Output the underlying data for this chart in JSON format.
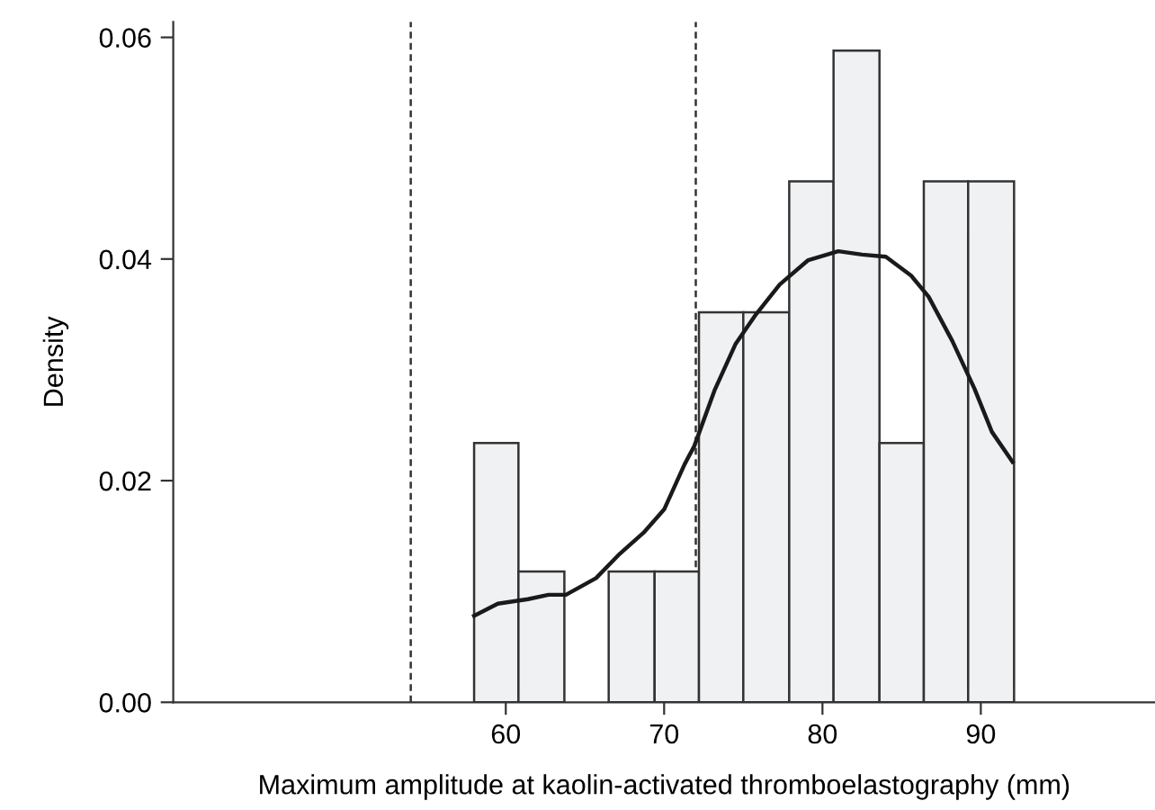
{
  "chart_data": {
    "type": "histogram",
    "xlabel": "Maximum amplitude at kaolin-activated thromboelastography (mm)",
    "ylabel": "Density",
    "bins": [
      58.0,
      60.8,
      63.7,
      66.5,
      69.4,
      72.2,
      75.0,
      77.9,
      80.7,
      83.6,
      86.4,
      89.2,
      92.1
    ],
    "values": [
      0.0234,
      0.0118,
      0,
      0.0118,
      0.0118,
      0.0352,
      0.0352,
      0.047,
      0.0588,
      0.0234,
      0.047,
      0.047
    ],
    "color": "#f0f1f3",
    "series": [
      {
        "type": "line",
        "color": "#1a1a1a",
        "x": [
          58.0,
          59.5,
          61.4,
          62.7,
          63.8,
          65.7,
          67.2,
          68.7,
          70.0,
          71.3,
          71.9,
          73.2,
          74.5,
          75.8,
          77.3,
          79.1,
          81.0,
          82.5,
          84.0,
          85.6,
          86.7,
          88.2,
          89.6,
          90.7,
          92.0
        ],
        "values": [
          0.0078,
          0.0089,
          0.0093,
          0.0097,
          0.0097,
          0.0112,
          0.0134,
          0.0153,
          0.0174,
          0.0215,
          0.0231,
          0.0282,
          0.0323,
          0.035,
          0.0377,
          0.0399,
          0.0407,
          0.0404,
          0.0402,
          0.0385,
          0.0366,
          0.0326,
          0.0283,
          0.0244,
          0.0217
        ]
      }
    ],
    "ref_lines": [
      {
        "axis": "x",
        "value": 54,
        "color": "#333333",
        "line_style": "dashed"
      },
      {
        "axis": "x",
        "value": 72,
        "color": "#333333",
        "line_style": "dashed"
      }
    ],
    "xlim": [
      39,
      101
    ],
    "ylim": [
      0,
      0.0614
    ],
    "xticks": [
      60,
      70,
      80,
      90
    ],
    "yticks": [
      {
        "value": 0,
        "label": "0.00"
      },
      {
        "value": 0.02,
        "label": "0.02"
      },
      {
        "value": 0.04,
        "label": "0.04"
      },
      {
        "value": 0.06,
        "label": "0.06"
      }
    ],
    "grid": false,
    "legend": false
  }
}
